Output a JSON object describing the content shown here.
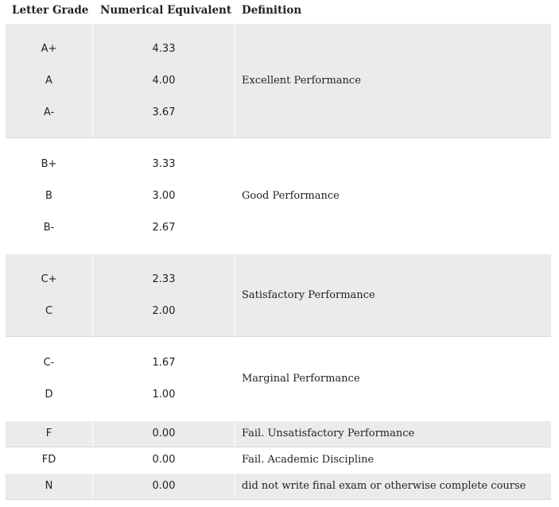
{
  "table": {
    "headers": {
      "grade": "Letter Grade",
      "numeric": "Numerical Equivalent",
      "definition": "Definition"
    },
    "groups": [
      {
        "definition": "Excellent Performance",
        "rows": [
          {
            "grade": "A+",
            "numeric": "4.33"
          },
          {
            "grade": "A",
            "numeric": "4.00"
          },
          {
            "grade": "A-",
            "numeric": "3.67"
          }
        ]
      },
      {
        "definition": "Good Performance",
        "rows": [
          {
            "grade": "B+",
            "numeric": "3.33"
          },
          {
            "grade": "B",
            "numeric": "3.00"
          },
          {
            "grade": "B-",
            "numeric": "2.67"
          }
        ]
      },
      {
        "definition": "Satisfactory Performance",
        "rows": [
          {
            "grade": "C+",
            "numeric": "2.33"
          },
          {
            "grade": "C",
            "numeric": "2.00"
          }
        ]
      },
      {
        "definition": "Marginal Performance",
        "rows": [
          {
            "grade": "C-",
            "numeric": "1.67"
          },
          {
            "grade": "D",
            "numeric": "1.00"
          }
        ]
      },
      {
        "definition": "Fail. Unsatisfactory Performance",
        "rows": [
          {
            "grade": "F",
            "numeric": "0.00"
          }
        ]
      },
      {
        "definition": "Fail. Academic Discipline",
        "rows": [
          {
            "grade": "FD",
            "numeric": "0.00"
          }
        ]
      },
      {
        "definition": "did not write final exam or otherwise complete course",
        "rows": [
          {
            "grade": "N",
            "numeric": "0.00"
          }
        ]
      }
    ]
  }
}
